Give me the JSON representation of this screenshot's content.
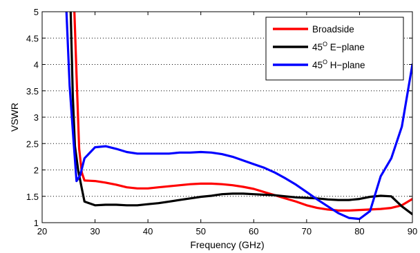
{
  "chart_data": {
    "type": "line",
    "title": "",
    "xlabel": "Frequency (GHz)",
    "ylabel": "VSWR",
    "xlim": [
      20,
      90
    ],
    "ylim": [
      1,
      5
    ],
    "xticks": [
      20,
      30,
      40,
      50,
      60,
      70,
      80,
      90
    ],
    "yticks": [
      1,
      1.5,
      2,
      2.5,
      3,
      3.5,
      4,
      4.5,
      5
    ],
    "xtick_labels": [
      "20",
      "30",
      "40",
      "50",
      "60",
      "70",
      "80",
      "90"
    ],
    "ytick_labels": [
      "1",
      "1.5",
      "2",
      "2.5",
      "3",
      "3.5",
      "4",
      "4.5",
      "5"
    ],
    "grid": "horizontal dotted",
    "legend_position": "top-right",
    "series": [
      {
        "name": "Broadside",
        "legend_main": "Broadside",
        "legend_sup": "",
        "legend_rest": "",
        "color": "#ff0000",
        "x": [
          26.1,
          26.5,
          27.0,
          27.5,
          28,
          30,
          32,
          34,
          36,
          38,
          40,
          42,
          44,
          46,
          48,
          50,
          52,
          54,
          56,
          58,
          60,
          62,
          64,
          66,
          68,
          70,
          72,
          74,
          76,
          78,
          80,
          82,
          84,
          86,
          88,
          90
        ],
        "y": [
          5.0,
          3.8,
          2.4,
          1.95,
          1.8,
          1.79,
          1.76,
          1.72,
          1.67,
          1.65,
          1.65,
          1.67,
          1.69,
          1.71,
          1.73,
          1.74,
          1.74,
          1.73,
          1.71,
          1.68,
          1.64,
          1.58,
          1.52,
          1.46,
          1.4,
          1.33,
          1.28,
          1.25,
          1.23,
          1.23,
          1.24,
          1.25,
          1.26,
          1.28,
          1.33,
          1.45
        ]
      },
      {
        "name": "45 E-plane",
        "legend_main": "45",
        "legend_sup": "O",
        "legend_rest": " E−plane",
        "color": "#000000",
        "x": [
          25.4,
          25.8,
          26.2,
          26.8,
          27.5,
          28,
          30,
          32,
          34,
          36,
          38,
          40,
          42,
          44,
          46,
          48,
          50,
          52,
          54,
          56,
          58,
          60,
          62,
          64,
          66,
          68,
          70,
          72,
          74,
          76,
          78,
          80,
          82,
          84,
          86,
          88,
          90
        ],
        "y": [
          5.0,
          3.4,
          2.45,
          2.0,
          1.65,
          1.4,
          1.33,
          1.34,
          1.34,
          1.33,
          1.33,
          1.35,
          1.37,
          1.4,
          1.43,
          1.46,
          1.49,
          1.51,
          1.54,
          1.55,
          1.55,
          1.54,
          1.53,
          1.52,
          1.5,
          1.48,
          1.47,
          1.46,
          1.44,
          1.43,
          1.43,
          1.45,
          1.49,
          1.51,
          1.5,
          1.31,
          1.16
        ]
      },
      {
        "name": "45 H-plane",
        "legend_main": "45",
        "legend_sup": "O",
        "legend_rest": " H−plane",
        "color": "#0000ff",
        "x": [
          24.6,
          25.2,
          25.9,
          26.5,
          27.2,
          28,
          30,
          32,
          34,
          36,
          38,
          40,
          42,
          44,
          46,
          48,
          50,
          52,
          54,
          56,
          58,
          60,
          62,
          64,
          66,
          68,
          70,
          72,
          74,
          76,
          78,
          80,
          82,
          84,
          86,
          88,
          90
        ],
        "y": [
          5.0,
          3.6,
          2.6,
          1.79,
          1.9,
          2.22,
          2.43,
          2.45,
          2.4,
          2.34,
          2.31,
          2.31,
          2.31,
          2.31,
          2.33,
          2.33,
          2.34,
          2.33,
          2.3,
          2.25,
          2.18,
          2.11,
          2.04,
          1.95,
          1.84,
          1.72,
          1.58,
          1.44,
          1.31,
          1.18,
          1.09,
          1.07,
          1.22,
          1.88,
          2.22,
          2.82,
          4.0
        ]
      }
    ]
  }
}
